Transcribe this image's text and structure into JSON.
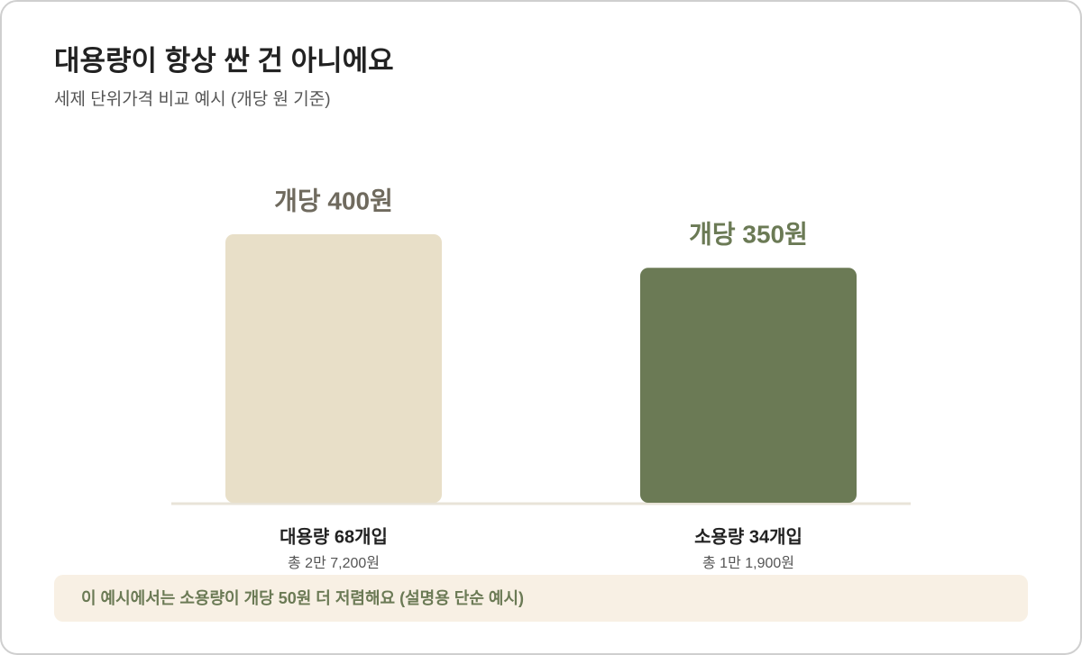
{
  "chart_data": {
    "type": "bar",
    "title": "대용량이 항상 싼 건 아니에요",
    "subtitle": "세제 단위가격 비교 예시 (개당 원 기준)",
    "categories": [
      "대용량 68개입",
      "소용량 34개입"
    ],
    "category_notes": [
      "총 2만 7,200원",
      "총 1만 1,900원"
    ],
    "values": [
      400,
      350
    ],
    "value_labels": [
      "개당 400원",
      "개당 350원"
    ],
    "colors": [
      "#e8dfc8",
      "#6b7a55"
    ],
    "value_label_colors": [
      "#6f6a5e",
      "#6b7a55"
    ],
    "note": "이 예시에서는 소용량이 개당 50원 더 저렴해요 (설명용 단순 예시)"
  }
}
